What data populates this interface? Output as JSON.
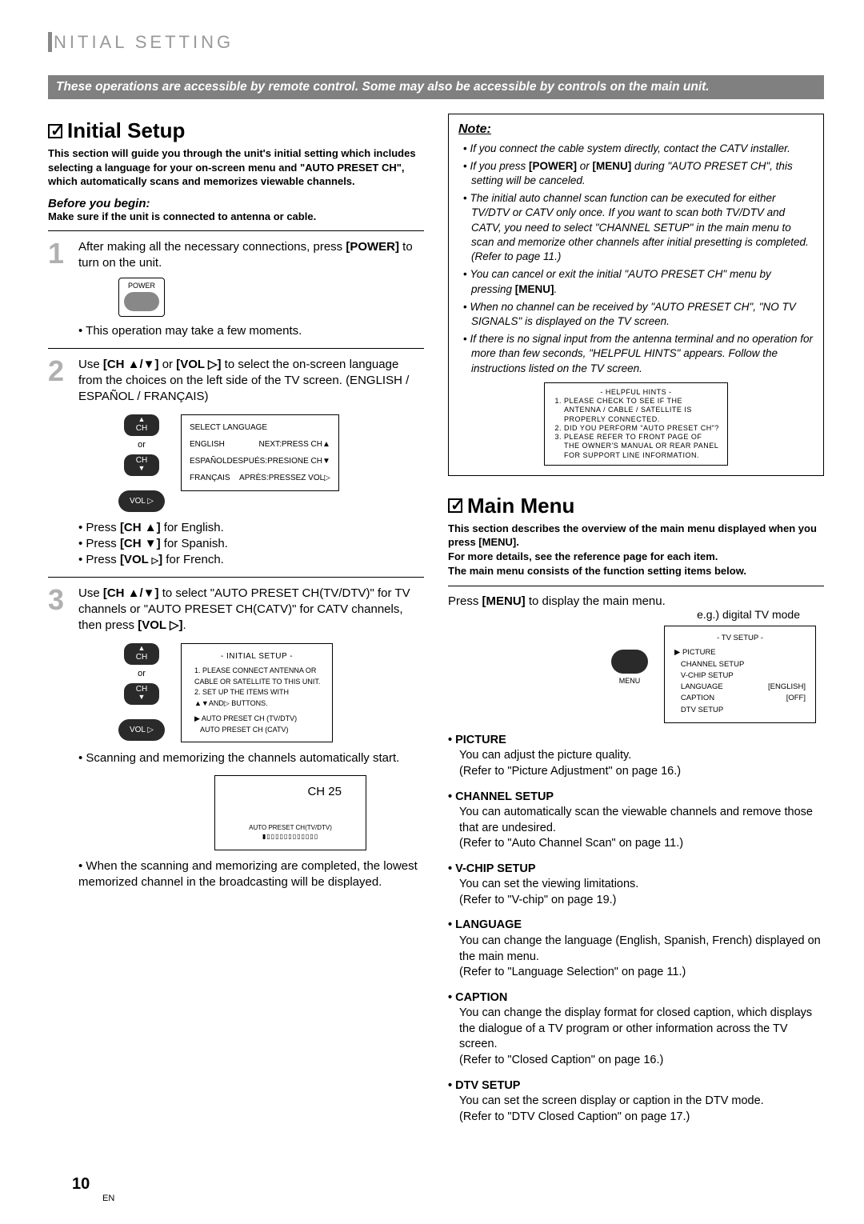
{
  "breadcrumb": "NITIAL SETTING",
  "banner": "These operations are accessible by remote control. Some may also be accessible by controls on the main unit.",
  "initialSetup": {
    "heading": "Initial Setup",
    "intro": "This section will guide you through the unit's initial setting which includes selecting a language for your on-screen menu and \"AUTO PRESET CH\", which automatically scans and memorizes viewable channels.",
    "beforeLabel": "Before you begin:",
    "beforeText": "Make sure if the unit is connected to antenna or cable.",
    "step1": {
      "text_a": "After making all the necessary connections, press ",
      "bold": "[POWER]",
      "text_b": " to turn on the unit.",
      "powerLabel": "POWER",
      "bullet": "This operation may take a few moments."
    },
    "step2": {
      "text_a": "Use ",
      "b1": "[CH ▲/▼]",
      "text_b": " or ",
      "b2": "[VOL ▷]",
      "text_c": " to select the on-screen language from the choices on the left side of the TV screen. (ENGLISH / ESPAÑOL / FRANÇAIS)",
      "remote": {
        "ch": "CH",
        "or": "or",
        "vol": "VOL ▷"
      },
      "osd": {
        "title": "SELECT LANGUAGE",
        "r1a": "ENGLISH",
        "r1b": "NEXT:PRESS CH▲",
        "r2a": "ESPAÑOL",
        "r2b": "DESPUÉS:PRESIONE CH▼",
        "r3a": "FRANÇAIS",
        "r3b": "APRÈS:PRESSEZ VOL▷"
      },
      "bullets": [
        "Press [CH ▲] for English.",
        "Press [CH ▼] for Spanish.",
        "Press [VOL ▷] for French."
      ]
    },
    "step3": {
      "text_a": "Use ",
      "b1": "[CH ▲/▼]",
      "text_b": " to select \"AUTO PRESET CH(TV/DTV)\" for TV channels or \"AUTO PRESET CH(CATV)\" for CATV channels, then press ",
      "b2": "[VOL ▷]",
      "text_c": ".",
      "osd": {
        "title": "- INITIAL SETUP -",
        "l1": "1. PLEASE CONNECT ANTENNA OR CABLE OR SATELLITE TO THIS UNIT.",
        "l2": "2. SET UP THE ITEMS WITH ▲▼AND▷ BUTTONS.",
        "l3": "▶ AUTO PRESET CH (TV/DTV)",
        "l4": "   AUTO PRESET CH (CATV)"
      },
      "bullet1": "Scanning and memorizing the channels automatically start.",
      "scan": {
        "ch": "CH   25",
        "label": "AUTO PRESET CH(TV/DTV)",
        "bar": "▮▯▯▯▯▯▯▯▯▯▯▯▯"
      },
      "bullet2": "When the scanning and memorizing are completed, the lowest memorized channel in the broadcasting will be displayed."
    }
  },
  "note": {
    "title": "Note:",
    "items": [
      "If you connect the cable system directly, contact the CATV installer.",
      "If you press [POWER] or [MENU] during \"AUTO PRESET CH\", this setting will be canceled.",
      "The initial auto channel scan function can be executed for either TV/DTV or CATV only once. If you want to scan both TV/DTV and CATV, you need to select \"CHANNEL SETUP\" in the main menu to scan and memorize other channels after initial presetting is completed. (Refer to page 11.)",
      "You can cancel or exit the initial \"AUTO PRESET CH\" menu by pressing [MENU].",
      "When no channel can be received by \"AUTO PRESET CH\", \"NO TV SIGNALS\" is displayed on the TV screen.",
      "If there is no signal input from the antenna terminal and no operation for more than few seconds, \"HELPFUL HINTS\" appears. Follow the instructions listed on the TV screen."
    ],
    "hints": {
      "title": "- HELPFUL HINTS -",
      "l1": "PLEASE CHECK TO SEE IF THE ANTENNA / CABLE / SATELLITE IS PROPERLY CONNECTED.",
      "l2": "DID YOU PERFORM \"AUTO PRESET CH\"?",
      "l3": "PLEASE REFER TO FRONT PAGE OF THE OWNER'S MANUAL OR REAR PANEL FOR SUPPORT LINE INFORMATION."
    }
  },
  "mainMenu": {
    "heading": "Main Menu",
    "intro1": "This section describes the overview of the main menu displayed when you press [MENU].",
    "intro2": "For more details, see the reference page for each item.",
    "intro3": "The main menu consists of the function setting items below.",
    "pressText_a": "Press ",
    "pressText_b": "[MENU]",
    "pressText_c": " to display the main menu.",
    "egLabel": "e.g.) digital TV mode",
    "tvSetup": {
      "title": "-  TV SETUP  -",
      "rows": [
        [
          "▶ PICTURE",
          ""
        ],
        [
          "CHANNEL SETUP",
          ""
        ],
        [
          "V-CHIP SETUP",
          ""
        ],
        [
          "LANGUAGE",
          "[ENGLISH]"
        ],
        [
          "CAPTION",
          "[OFF]"
        ],
        [
          "DTV SETUP",
          ""
        ]
      ]
    },
    "items": [
      {
        "title": "PICTURE",
        "body": "You can adjust the picture quality.\n(Refer to \"Picture Adjustment\" on page 16.)"
      },
      {
        "title": "CHANNEL SETUP",
        "body": "You can automatically scan the viewable channels and remove those that are undesired.\n(Refer to \"Auto Channel Scan\" on page 11.)"
      },
      {
        "title": "V-CHIP SETUP",
        "body": "You can set the viewing limitations.\n(Refer to \"V-chip\" on page 19.)"
      },
      {
        "title": "LANGUAGE",
        "body": "You can change the language (English, Spanish, French) displayed on the main menu.\n(Refer to \"Language Selection\" on page 11.)"
      },
      {
        "title": "CAPTION",
        "body": "You can change the display format for closed caption, which displays the dialogue of a TV program or other information across the TV screen.\n(Refer to \"Closed Caption\" on page 16.)"
      },
      {
        "title": "DTV SETUP",
        "body": "You can set the screen display or caption in the DTV mode.\n(Refer to \"DTV Closed Caption\" on page 17.)"
      }
    ]
  },
  "pageNum": "10",
  "pageLang": "EN"
}
